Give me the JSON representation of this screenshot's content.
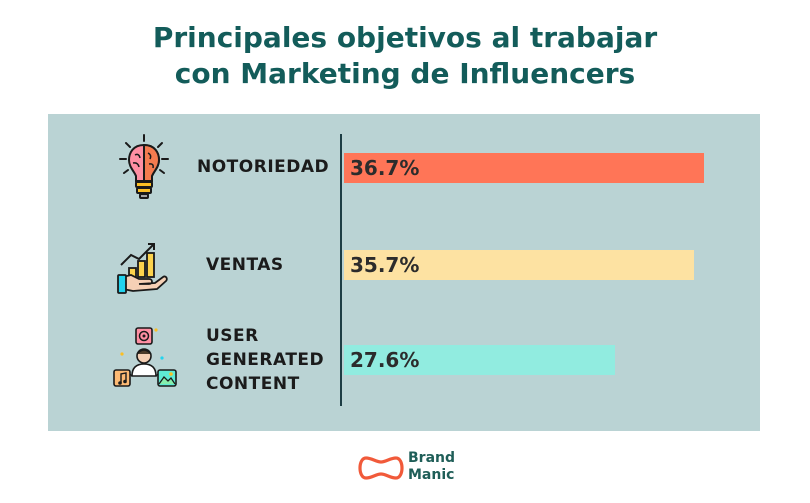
{
  "title": {
    "line1": "Principales objetivos al trabajar",
    "line2": "con Marketing de Influencers"
  },
  "colors": {
    "title": "#135c5a",
    "panel": "#bad3d4",
    "axis": "#1d3d44",
    "logo": "#f15a3a"
  },
  "logo": {
    "line1": "Brand",
    "line2": "Manic"
  },
  "chart_data": {
    "type": "bar",
    "orientation": "horizontal",
    "categories": [
      "NOTORIEDAD",
      "VENTAS",
      "USER\nGENERATED\nCONTENT"
    ],
    "values": [
      36.7,
      35.7,
      27.6
    ],
    "value_labels": [
      "36.7%",
      "35.7%",
      "27.6%"
    ],
    "bar_colors": [
      "#ff7557",
      "#fde2a2",
      "#91ece0"
    ],
    "icons": [
      "lightbulb-brain-icon",
      "growth-hand-icon",
      "user-content-network-icon"
    ],
    "xlim": [
      0,
      40
    ]
  }
}
